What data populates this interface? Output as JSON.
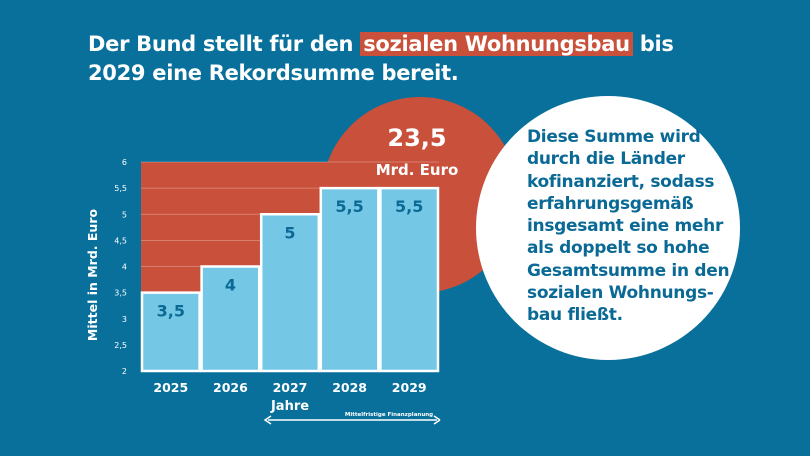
{
  "headline": {
    "before": "Der Bund stellt für den",
    "highlight": "sozialen Wohnungsbau",
    "after": "bis 2029 eine Rekordsumme bereit."
  },
  "total": {
    "value": "23,5",
    "unit": "Mrd. Euro"
  },
  "info_lines": [
    "Diese Summe wird",
    "durch die Länder",
    "kofinanziert, sodass",
    "erfahrungsgemäß",
    "insgesamt eine mehr",
    "als doppelt so hohe",
    "Gesamtsumme in den",
    "sozialen Wohnungs-",
    "bau fließt."
  ],
  "colors": {
    "background": "#08709a",
    "accent_red": "#c9503a",
    "bar": "#74c8e6",
    "bar_label": "#0b6a95"
  },
  "chart_data": {
    "type": "bar",
    "categories": [
      "2025",
      "2026",
      "2027",
      "2028",
      "2029"
    ],
    "values": [
      3.5,
      4,
      5,
      5.5,
      5.5
    ],
    "data_labels": [
      "3,5",
      "4",
      "5",
      "5,5",
      "5,5"
    ],
    "xlabel": "Jahre",
    "ylabel": "Mittel in Mrd. Euro",
    "ylim": [
      2,
      6
    ],
    "yticks": [
      "2",
      "2,5",
      "3",
      "3,5",
      "4",
      "4,5",
      "5",
      "5,5",
      "6"
    ],
    "grid": true,
    "annotation": {
      "text": "Mittelfristige Finanzplanung",
      "span": [
        "2027",
        "2029"
      ]
    }
  }
}
